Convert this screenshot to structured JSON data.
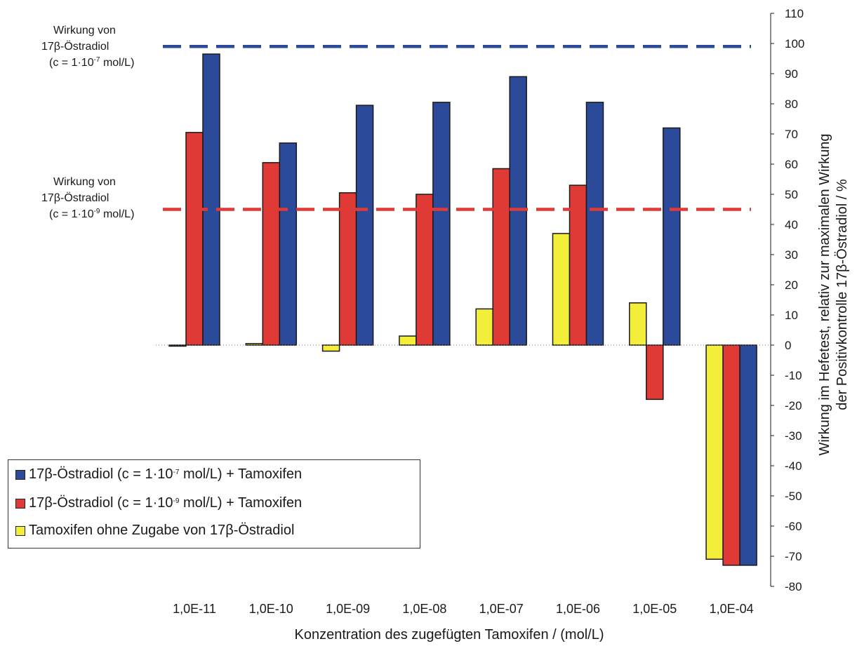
{
  "chart_data": {
    "type": "bar",
    "categories": [
      "1,0E-11",
      "1,0E-10",
      "1,0E-09",
      "1,0E-08",
      "1,0E-07",
      "1,0E-06",
      "1,0E-05",
      "1,0E-04"
    ],
    "series": [
      {
        "name_parts": [
          "Tamoxifen ohne Zugabe von 17β-Östradiol"
        ],
        "color": "#f2ee3a",
        "values": [
          0,
          0.5,
          -2,
          3,
          12,
          37,
          14,
          -71
        ]
      },
      {
        "name_parts": [
          "17β-Östradiol (c = 1·10",
          "-9",
          " mol/L) + Tamoxifen"
        ],
        "color": "#e03a36",
        "values": [
          70.5,
          60.5,
          50.5,
          50,
          58.5,
          53,
          -18,
          -73
        ]
      },
      {
        "name_parts": [
          "17β-Östradiol (c = 1·10",
          "-7",
          " mol/L) + Tamoxifen"
        ],
        "color": "#2c4a9a",
        "values": [
          96.5,
          67,
          79.5,
          80.5,
          89,
          80.5,
          72,
          -73
        ]
      }
    ],
    "yticks": [
      110,
      100,
      90,
      80,
      70,
      60,
      50,
      40,
      30,
      20,
      10,
      0,
      -10,
      -20,
      -30,
      -40,
      -50,
      -60,
      -70,
      -80
    ],
    "ylim": [
      -80,
      110
    ],
    "xlabel": "Konzentration des zugefügten Tamoxifen / (mol/L)",
    "ylabel_lines": [
      "Wirkung im Hefetest, relativ zur maximalen Wirkung",
      "der Positivkontrolle 17β-Östradiol / %"
    ],
    "reference_lines": [
      {
        "value": 99,
        "color": "#2c4a9a",
        "label_lines": [
          "Wirkung von",
          "17β-Östradiol",
          "(c = 1·10"
        ],
        "sup": "-7",
        "suffix": " mol/L)"
      },
      {
        "value": 45,
        "color": "#e03a36",
        "label_lines": [
          "Wirkung von",
          "17β-Östradiol",
          "(c = 1·10"
        ],
        "sup": "-9",
        "suffix": " mol/L)"
      }
    ],
    "legend_order": [
      2,
      1,
      0
    ],
    "legend_position": "bottom-left",
    "grid": false
  }
}
